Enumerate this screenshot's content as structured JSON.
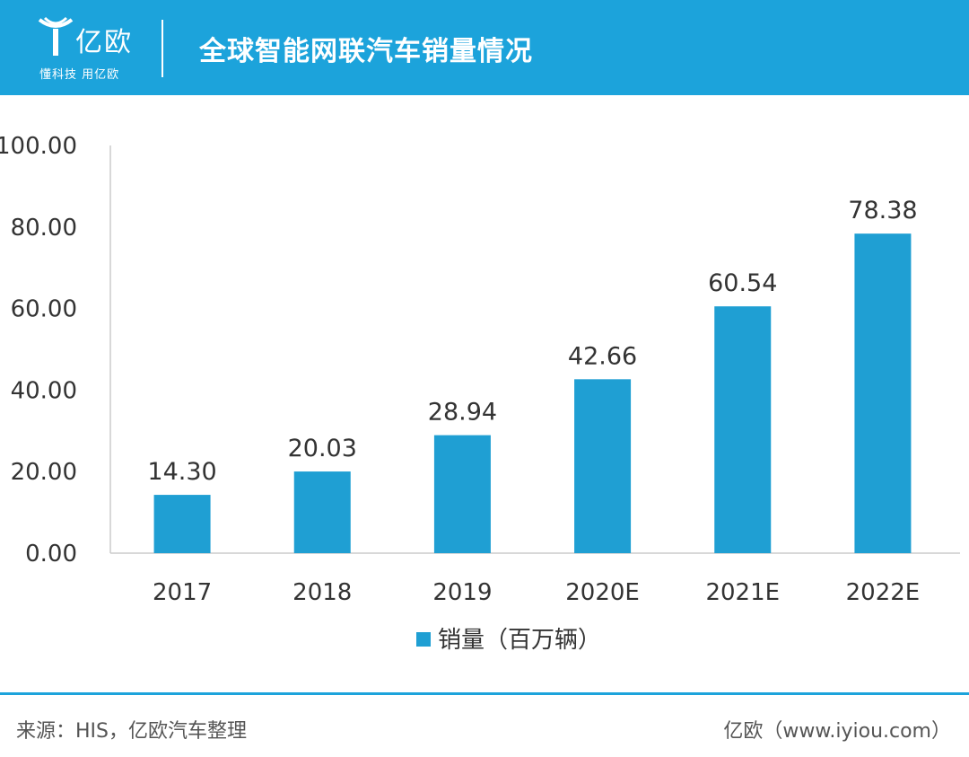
{
  "header": {
    "logo_text": "亿欧",
    "logo_slogan": "懂科技 用亿欧",
    "title": "全球智能网联汽车销量情况"
  },
  "colors": {
    "accent": "#1ca3db",
    "bar": "#1f9fd3"
  },
  "chart_data": {
    "type": "bar",
    "title": "全球智能网联汽车销量情况",
    "categories": [
      "2017",
      "2018",
      "2019",
      "2020E",
      "2021E",
      "2022E"
    ],
    "series": [
      {
        "name": "销量（百万辆）",
        "values": [
          14.3,
          20.03,
          28.94,
          42.66,
          60.54,
          78.38
        ]
      }
    ],
    "value_labels": [
      "14.30",
      "20.03",
      "28.94",
      "42.66",
      "60.54",
      "78.38"
    ],
    "y_ticks": [
      "0.00",
      "20.00",
      "40.00",
      "60.00",
      "80.00",
      "100.00"
    ],
    "ylim": [
      0,
      100
    ],
    "xlabel": "",
    "ylabel": "",
    "legend": "bottom",
    "grid": false
  },
  "footer": {
    "source": "来源：HIS，亿欧汽车整理",
    "credit": "亿欧（www.iyiou.com）"
  }
}
